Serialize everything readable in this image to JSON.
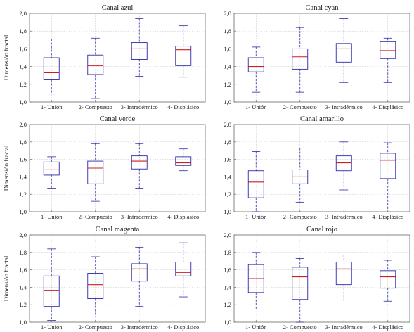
{
  "chart_data": [
    {
      "type": "boxplot",
      "title": "Canal azul",
      "ylabel": "Dimensión fractal",
      "xlabel": "",
      "ylim": [
        1.0,
        2.0
      ],
      "yticks": [
        "1,0",
        "1,2",
        "1,4",
        "1,6",
        "1,8",
        "2,0"
      ],
      "categories": [
        "1- Unión",
        "2- Compuesto",
        "3- Intradérmico",
        "4- Displásico"
      ],
      "boxes": [
        {
          "min": 1.09,
          "q1": 1.25,
          "median": 1.33,
          "q3": 1.5,
          "max": 1.71
        },
        {
          "min": 1.04,
          "q1": 1.31,
          "median": 1.41,
          "q3": 1.53,
          "max": 1.72
        },
        {
          "min": 1.29,
          "q1": 1.48,
          "median": 1.6,
          "q3": 1.67,
          "max": 1.94
        },
        {
          "min": 1.28,
          "q1": 1.41,
          "median": 1.59,
          "q3": 1.63,
          "max": 1.86
        }
      ],
      "grid": true
    },
    {
      "type": "boxplot",
      "title": "Canal cyan",
      "ylabel": "",
      "xlabel": "",
      "ylim": [
        1.0,
        2.0
      ],
      "yticks": [
        "1,0",
        "1,2",
        "1,4",
        "1,6",
        "1,8",
        "2,0"
      ],
      "categories": [
        "1- Unión",
        "2- Compuesto",
        "3- Intradérmico",
        "4- Displásico"
      ],
      "boxes": [
        {
          "min": 1.11,
          "q1": 1.34,
          "median": 1.4,
          "q3": 1.5,
          "max": 1.62
        },
        {
          "min": 1.11,
          "q1": 1.37,
          "median": 1.51,
          "q3": 1.6,
          "max": 1.84
        },
        {
          "min": 1.22,
          "q1": 1.45,
          "median": 1.6,
          "q3": 1.66,
          "max": 1.94
        },
        {
          "min": 1.22,
          "q1": 1.49,
          "median": 1.58,
          "q3": 1.68,
          "max": 1.72
        }
      ],
      "grid": true
    },
    {
      "type": "boxplot",
      "title": "Canal verde",
      "ylabel": "Dimensión fractal",
      "xlabel": "",
      "ylim": [
        1.0,
        2.0
      ],
      "yticks": [
        "1,0",
        "1,2",
        "1,4",
        "1,6",
        "1,8",
        "2,0"
      ],
      "categories": [
        "1- Unión",
        "2- Compuesto",
        "3- Intradérmico",
        "4- Displásico"
      ],
      "boxes": [
        {
          "min": 1.27,
          "q1": 1.42,
          "median": 1.48,
          "q3": 1.57,
          "max": 1.63
        },
        {
          "min": 1.12,
          "q1": 1.32,
          "median": 1.5,
          "q3": 1.58,
          "max": 1.78
        },
        {
          "min": 1.27,
          "q1": 1.49,
          "median": 1.58,
          "q3": 1.64,
          "max": 1.78
        },
        {
          "min": 1.47,
          "q1": 1.53,
          "median": 1.56,
          "q3": 1.63,
          "max": 1.72
        }
      ],
      "grid": true
    },
    {
      "type": "boxplot",
      "title": "Canal amarillo",
      "ylabel": "",
      "xlabel": "",
      "ylim": [
        1.0,
        2.0
      ],
      "yticks": [
        "1,0",
        "1,2",
        "1,4",
        "1,6",
        "1,8",
        "2,0"
      ],
      "categories": [
        "1- Unión",
        "2- Compuesto",
        "3- Intradérmico",
        "4- Displásico"
      ],
      "boxes": [
        {
          "min": 1.0,
          "q1": 1.16,
          "median": 1.34,
          "q3": 1.47,
          "max": 1.69
        },
        {
          "min": 1.11,
          "q1": 1.32,
          "median": 1.4,
          "q3": 1.48,
          "max": 1.73
        },
        {
          "min": 1.25,
          "q1": 1.47,
          "median": 1.56,
          "q3": 1.64,
          "max": 1.8
        },
        {
          "min": 1.02,
          "q1": 1.38,
          "median": 1.59,
          "q3": 1.67,
          "max": 1.79
        }
      ],
      "grid": true
    },
    {
      "type": "boxplot",
      "title": "Canal magenta",
      "ylabel": "Dimensión fractal",
      "xlabel": "",
      "ylim": [
        1.0,
        2.0
      ],
      "yticks": [
        "1,0",
        "1,2",
        "1,4",
        "1,6",
        "1,8",
        "2,0"
      ],
      "categories": [
        "1- Unión",
        "2- Compuesto",
        "3- Intradérmico",
        "4- Displásico"
      ],
      "boxes": [
        {
          "min": 1.02,
          "q1": 1.18,
          "median": 1.36,
          "q3": 1.53,
          "max": 1.84
        },
        {
          "min": 1.06,
          "q1": 1.27,
          "median": 1.43,
          "q3": 1.56,
          "max": 1.75
        },
        {
          "min": 1.18,
          "q1": 1.47,
          "median": 1.61,
          "q3": 1.67,
          "max": 1.86
        },
        {
          "min": 1.29,
          "q1": 1.53,
          "median": 1.57,
          "q3": 1.69,
          "max": 1.91
        }
      ],
      "grid": true
    },
    {
      "type": "boxplot",
      "title": "Canal rojo",
      "ylabel": "",
      "xlabel": "",
      "ylim": [
        1.0,
        2.0
      ],
      "yticks": [
        "1,0",
        "1,2",
        "1,4",
        "1,6",
        "1,8",
        "2,0"
      ],
      "categories": [
        "1- Unión",
        "2- Compuesto",
        "3- Intradérmico",
        "4- Displásico"
      ],
      "boxes": [
        {
          "min": 1.15,
          "q1": 1.34,
          "median": 1.5,
          "q3": 1.66,
          "max": 1.8
        },
        {
          "min": 1.0,
          "q1": 1.26,
          "median": 1.52,
          "q3": 1.63,
          "max": 1.73
        },
        {
          "min": 1.23,
          "q1": 1.43,
          "median": 1.61,
          "q3": 1.69,
          "max": 1.77
        },
        {
          "min": 1.24,
          "q1": 1.39,
          "median": 1.52,
          "q3": 1.59,
          "max": 1.71
        }
      ],
      "grid": true
    }
  ],
  "colors": {
    "box": "#2a2aaa",
    "whisker": "#2a2aaa",
    "median": "#cc1f1f",
    "grid": "#bfbfbf",
    "frame": "#666666"
  }
}
